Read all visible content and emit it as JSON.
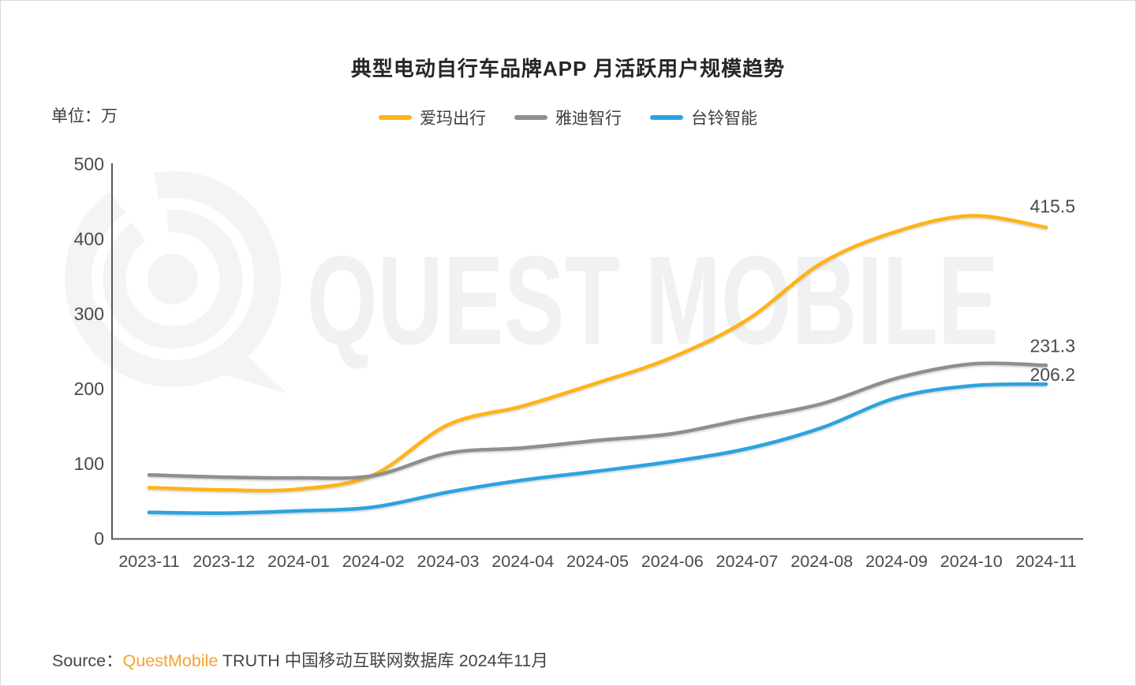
{
  "page": {
    "title": "典型电动自行车品牌APP 月活跃用户规模趋势",
    "unit_label": "单位：万",
    "watermark_text": "QUEST MOBILE",
    "source": {
      "prefix": "Source：",
      "brand": "QuestMobile",
      "suffix": " TRUTH 中国移动互联网数据库 2024年11月"
    }
  },
  "legend": [
    {
      "id": "aima",
      "label": "爱玛出行",
      "color": "#FFB414"
    },
    {
      "id": "yadea",
      "label": "雅迪智行",
      "color": "#8F8F8F"
    },
    {
      "id": "tailg",
      "label": "台铃智能",
      "color": "#2BA3E0"
    }
  ],
  "chart_data": {
    "type": "line",
    "title": "典型电动自行车品牌APP 月活跃用户规模趋势",
    "unit": "万",
    "categories": [
      "2023-11",
      "2023-12",
      "2024-01",
      "2024-02",
      "2024-03",
      "2024-04",
      "2024-05",
      "2024-06",
      "2024-07",
      "2024-08",
      "2024-09",
      "2024-10",
      "2024-11"
    ],
    "series": [
      {
        "id": "aima",
        "name": "爱玛出行",
        "color": "#FFB414",
        "values": [
          68,
          65,
          66,
          85,
          152,
          177,
          208,
          242,
          292,
          368,
          410,
          431,
          415.5
        ],
        "end_label": "415.5"
      },
      {
        "id": "yadea",
        "name": "雅迪智行",
        "color": "#8F8F8F",
        "values": [
          85,
          82,
          81,
          84,
          114,
          121,
          131,
          140,
          160,
          180,
          214,
          233,
          231.3
        ],
        "end_label": "231.3"
      },
      {
        "id": "tailg",
        "name": "台铃智能",
        "color": "#2BA3E0",
        "values": [
          35,
          34,
          37,
          42,
          62,
          78,
          90,
          103,
          120,
          148,
          188,
          204,
          206.2
        ],
        "end_label": "206.2"
      }
    ],
    "y_ticks": [
      0,
      100,
      200,
      300,
      400,
      500
    ],
    "ylim": [
      0,
      500
    ],
    "grid": false,
    "legend_position": "top"
  }
}
